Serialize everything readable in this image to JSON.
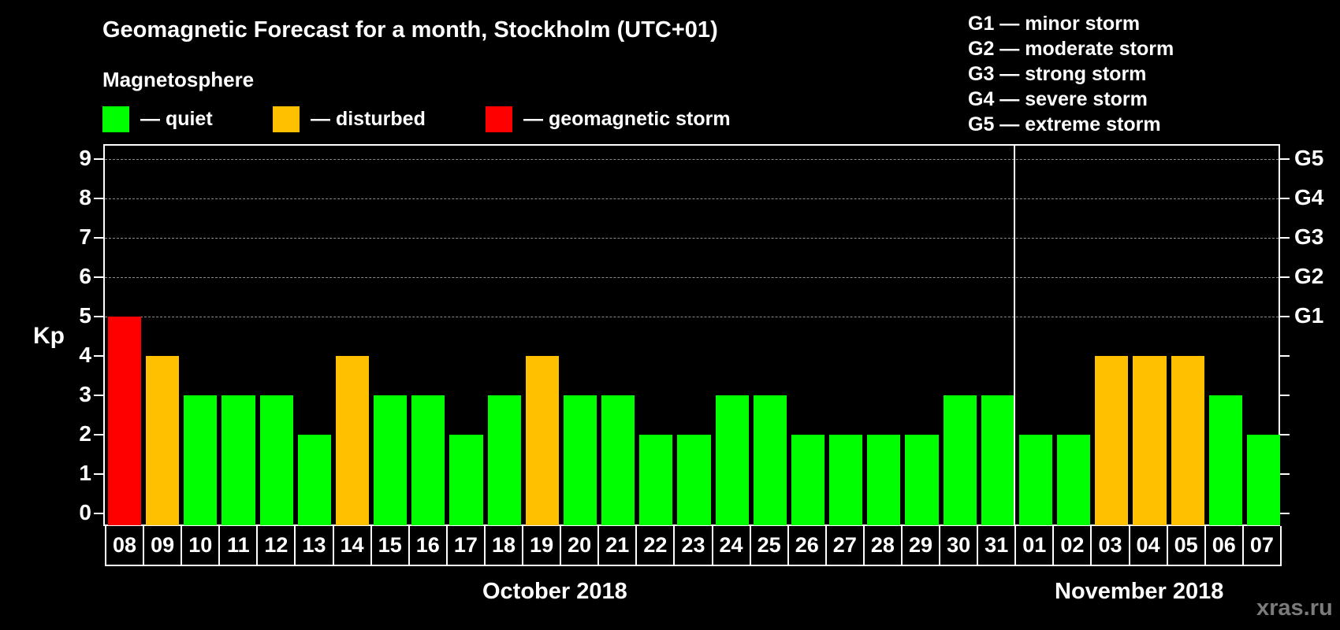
{
  "header": {
    "title": "Geomagnetic Forecast for a month, Stockholm (UTC+01)",
    "subtitle": "Magnetosphere"
  },
  "legend": [
    {
      "label": "— quiet",
      "color": "#00ff00"
    },
    {
      "label": "— disturbed",
      "color": "#ffc000"
    },
    {
      "label": "— geomagnetic storm",
      "color": "#ff0000"
    }
  ],
  "storm_scale": [
    "G1 — minor storm",
    "G2 — moderate storm",
    "G3 — strong storm",
    "G4 — severe storm",
    "G5 — extreme storm"
  ],
  "axis": {
    "ylabel": "Kp",
    "yticks": [
      "0",
      "1",
      "2",
      "3",
      "4",
      "5",
      "6",
      "7",
      "8",
      "9"
    ],
    "right_labels": [
      {
        "kp": 5,
        "label": "G1"
      },
      {
        "kp": 6,
        "label": "G2"
      },
      {
        "kp": 7,
        "label": "G3"
      },
      {
        "kp": 8,
        "label": "G4"
      },
      {
        "kp": 9,
        "label": "G5"
      }
    ]
  },
  "months": {
    "first": "October 2018",
    "second": "November 2018"
  },
  "watermark": "xras.ru",
  "colors": {
    "quiet": "#00ff00",
    "disturbed": "#ffc000",
    "storm": "#ff0000",
    "grid": "#8a8a8a",
    "background": "#000000"
  },
  "chart_data": {
    "type": "bar",
    "title": "Geomagnetic Forecast for a month, Stockholm (UTC+01)",
    "xlabel": "October 2018 / November 2018",
    "ylabel": "Kp",
    "ylim": [
      0,
      9
    ],
    "grid": true,
    "categories": [
      "08",
      "09",
      "10",
      "11",
      "12",
      "13",
      "14",
      "15",
      "16",
      "17",
      "18",
      "19",
      "20",
      "21",
      "22",
      "23",
      "24",
      "25",
      "26",
      "27",
      "28",
      "29",
      "30",
      "31",
      "01",
      "02",
      "03",
      "04",
      "05",
      "06",
      "07"
    ],
    "values": [
      5,
      4,
      3,
      3,
      3,
      2,
      4,
      3,
      3,
      2,
      3,
      4,
      3,
      3,
      2,
      2,
      3,
      3,
      2,
      2,
      2,
      2,
      3,
      3,
      2,
      2,
      4,
      4,
      4,
      3,
      2
    ],
    "status": [
      "storm",
      "disturbed",
      "quiet",
      "quiet",
      "quiet",
      "quiet",
      "disturbed",
      "quiet",
      "quiet",
      "quiet",
      "quiet",
      "disturbed",
      "quiet",
      "quiet",
      "quiet",
      "quiet",
      "quiet",
      "quiet",
      "quiet",
      "quiet",
      "quiet",
      "quiet",
      "quiet",
      "quiet",
      "quiet",
      "quiet",
      "disturbed",
      "disturbed",
      "disturbed",
      "quiet",
      "quiet"
    ],
    "month_boundary_after_index": 23,
    "legend": [
      "quiet",
      "disturbed",
      "geomagnetic storm"
    ],
    "right_axis": {
      "5": "G1",
      "6": "G2",
      "7": "G3",
      "8": "G4",
      "9": "G5"
    }
  }
}
